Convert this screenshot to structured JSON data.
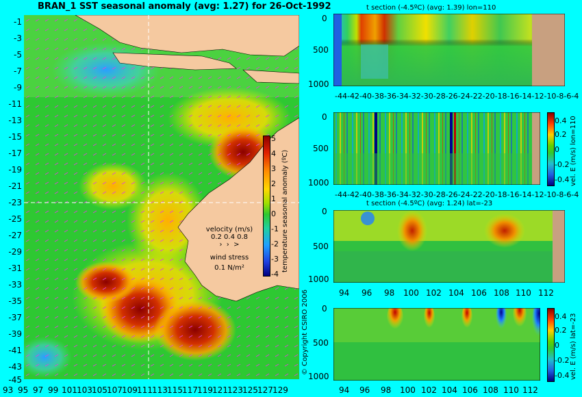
{
  "main_map": {
    "title": "BRAN_1  SST seasonal anomaly  (avg: 1.27) for 26-Oct-1992",
    "lat_ticks": [
      "-1",
      "-3",
      "-5",
      "-7",
      "-9",
      "-11",
      "-13",
      "-15",
      "-17",
      "-19",
      "-21",
      "-23",
      "-25",
      "-27",
      "-29",
      "-31",
      "-33",
      "-35",
      "-37",
      "-39",
      "-41",
      "-43",
      "-45"
    ],
    "lon_ticks": [
      "93",
      "95",
      "97",
      "99",
      "101",
      "103",
      "105",
      "107",
      "109",
      "111",
      "113",
      "115",
      "117",
      "119",
      "121",
      "123",
      "125",
      "127",
      "129"
    ],
    "colorbar": {
      "label": "temperature seasonal anomaly (ºC)",
      "ticks": [
        "5",
        "4",
        "3",
        "2",
        "1",
        "0",
        "-1",
        "-2",
        "-3",
        "-4"
      ]
    },
    "velocity_legend": {
      "title": "velocity (m/s)",
      "values": "0.2 0.4 0.8",
      "wind_title": "wind stress",
      "wind_value": "0.1 N/m²"
    },
    "copyright": "© Copyright CSIRO 2006"
  },
  "panels": [
    {
      "id": "t-section-lon",
      "title": "t section (-4.5ºC) (avg: 1.39) lon=110",
      "y_ticks": [
        "0",
        "500",
        "1000"
      ],
      "x_ticks": [
        "-44",
        "-42",
        "-40",
        "-38",
        "-36",
        "-34",
        "-32",
        "-30",
        "-28",
        "-26",
        "-24",
        "-22",
        "-20",
        "-18",
        "-16",
        "-14",
        "-12",
        "-10",
        "-8",
        "-6",
        "-4"
      ],
      "colorbar": null
    },
    {
      "id": "vel-lon",
      "title": "",
      "y_ticks": [
        "0",
        "500",
        "1000"
      ],
      "x_ticks": [
        "-44",
        "-42",
        "-40",
        "-38",
        "-36",
        "-34",
        "-32",
        "-30",
        "-28",
        "-26",
        "-24",
        "-22",
        "-20",
        "-18",
        "-16",
        "-14",
        "-12",
        "-10",
        "-8",
        "-6",
        "-4"
      ],
      "colorbar": {
        "label": "vel. E (m/s) lon=110",
        "ticks": [
          "0.4",
          "0.2",
          "0",
          "-0.2",
          "-0.4"
        ]
      }
    },
    {
      "id": "t-section-lat",
      "title": "t section (-4.5ºC) (avg: 1.24) lat=-23",
      "y_ticks": [
        "0",
        "500",
        "1000"
      ],
      "x_ticks": [
        "94",
        "96",
        "98",
        "100",
        "102",
        "104",
        "106",
        "108",
        "110",
        "112"
      ],
      "colorbar": null
    },
    {
      "id": "vel-lat",
      "title": "",
      "y_ticks": [
        "0",
        "500",
        "1000"
      ],
      "x_ticks": [
        "94",
        "96",
        "98",
        "100",
        "102",
        "104",
        "106",
        "108",
        "110",
        "112"
      ],
      "colorbar": {
        "label": "vel. E (m/s) lat=-23",
        "ticks": [
          "0.4",
          "0.2",
          "0",
          "-0.2",
          "-0.4"
        ]
      }
    }
  ],
  "colors": {
    "background": "#00ffff",
    "land": "#f5c9a0",
    "ocean_base": "#33cc33"
  }
}
